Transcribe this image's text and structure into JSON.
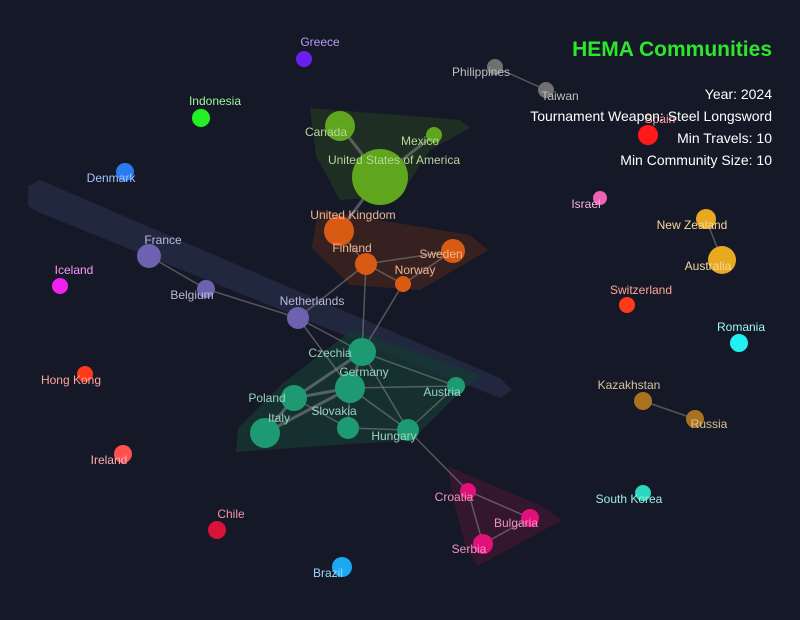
{
  "header": {
    "title": "HEMA Communities",
    "year": "Year:  2024",
    "weapon": "Tournament Weapon: Steel Longsword",
    "min_travels": "Min Travels:  10",
    "min_community": "Min Community Size:  10"
  },
  "colors": {
    "background": "#151827",
    "title": "#2ee62e",
    "edge": "#8a8a8a"
  },
  "nodes": [
    {
      "id": "greece",
      "label": "Greece",
      "color": "#6a1ff0"
    },
    {
      "id": "philippines",
      "label": "Philippines",
      "color": "#707070"
    },
    {
      "id": "taiwan",
      "label": "Taiwan",
      "color": "#707070"
    },
    {
      "id": "spain",
      "label": "Spain",
      "color": "#ff1a1a"
    },
    {
      "id": "indonesia",
      "label": "Indonesia",
      "color": "#22f022"
    },
    {
      "id": "canada",
      "label": "Canada",
      "color": "#5fa51e"
    },
    {
      "id": "mexico",
      "label": "Mexico",
      "color": "#5fa51e"
    },
    {
      "id": "usa",
      "label": "United States of America",
      "color": "#5fa51e"
    },
    {
      "id": "denmark",
      "label": "Denmark",
      "color": "#2a7af0"
    },
    {
      "id": "israel",
      "label": "Israel",
      "color": "#f060b0"
    },
    {
      "id": "new_zealand",
      "label": "New Zealand",
      "color": "#e8a820"
    },
    {
      "id": "australia",
      "label": "Australia",
      "color": "#e8a820"
    },
    {
      "id": "uk",
      "label": "United Kingdom",
      "color": "#d95a12"
    },
    {
      "id": "finland",
      "label": "Finland",
      "color": "#d95a12"
    },
    {
      "id": "sweden",
      "label": "Sweden",
      "color": "#d95a12"
    },
    {
      "id": "norway",
      "label": "Norway",
      "color": "#d95a12"
    },
    {
      "id": "france",
      "label": "France",
      "color": "#6e62b0"
    },
    {
      "id": "belgium",
      "label": "Belgium",
      "color": "#6e62b0"
    },
    {
      "id": "netherlands",
      "label": "Netherlands",
      "color": "#6e62b0"
    },
    {
      "id": "iceland",
      "label": "Iceland",
      "color": "#f020f0"
    },
    {
      "id": "switzerland",
      "label": "Switzerland",
      "color": "#ff3a1a"
    },
    {
      "id": "romania",
      "label": "Romania",
      "color": "#22f0f0"
    },
    {
      "id": "czechia",
      "label": "Czechia",
      "color": "#1e9a72"
    },
    {
      "id": "germany",
      "label": "Germany",
      "color": "#1e9a72"
    },
    {
      "id": "austria",
      "label": "Austria",
      "color": "#1e9a72"
    },
    {
      "id": "poland",
      "label": "Poland",
      "color": "#1e9a72"
    },
    {
      "id": "italy",
      "label": "Italy",
      "color": "#1e9a72"
    },
    {
      "id": "slovakia",
      "label": "Slovakia",
      "color": "#1e9a72"
    },
    {
      "id": "hungary",
      "label": "Hungary",
      "color": "#1e9a72"
    },
    {
      "id": "hong_kong",
      "label": "Hong Kong",
      "color": "#ff3a1a"
    },
    {
      "id": "ireland",
      "label": "Ireland",
      "color": "#ff5050"
    },
    {
      "id": "kazakhstan",
      "label": "Kazakhstan",
      "color": "#a8721e"
    },
    {
      "id": "russia",
      "label": "Russia",
      "color": "#a8721e"
    },
    {
      "id": "croatia",
      "label": "Croatia",
      "color": "#e0127a"
    },
    {
      "id": "bulgaria",
      "label": "Bulgaria",
      "color": "#e0127a"
    },
    {
      "id": "serbia",
      "label": "Serbia",
      "color": "#e0127a"
    },
    {
      "id": "south_korea",
      "label": "South Korea",
      "color": "#2ad8c0"
    },
    {
      "id": "chile",
      "label": "Chile",
      "color": "#d8123a"
    },
    {
      "id": "brazil",
      "label": "Brazil",
      "color": "#1aa8f0"
    }
  ],
  "edges": [
    [
      "philippines",
      "taiwan"
    ],
    [
      "canada",
      "usa"
    ],
    [
      "mexico",
      "usa"
    ],
    [
      "usa",
      "uk"
    ],
    [
      "uk",
      "finland"
    ],
    [
      "finland",
      "sweden"
    ],
    [
      "finland",
      "norway"
    ],
    [
      "sweden",
      "norway"
    ],
    [
      "finland",
      "netherlands"
    ],
    [
      "finland",
      "czechia"
    ],
    [
      "norway",
      "czechia"
    ],
    [
      "france",
      "belgium"
    ],
    [
      "belgium",
      "netherlands"
    ],
    [
      "netherlands",
      "czechia"
    ],
    [
      "netherlands",
      "germany"
    ],
    [
      "czechia",
      "germany"
    ],
    [
      "czechia",
      "poland"
    ],
    [
      "czechia",
      "austria"
    ],
    [
      "germany",
      "poland"
    ],
    [
      "germany",
      "italy"
    ],
    [
      "germany",
      "slovakia"
    ],
    [
      "germany",
      "austria"
    ],
    [
      "germany",
      "hungary"
    ],
    [
      "poland",
      "slovakia"
    ],
    [
      "poland",
      "italy"
    ],
    [
      "slovakia",
      "hungary"
    ],
    [
      "austria",
      "hungary"
    ],
    [
      "czechia",
      "hungary"
    ],
    [
      "hungary",
      "croatia"
    ],
    [
      "croatia",
      "serbia"
    ],
    [
      "croatia",
      "bulgaria"
    ],
    [
      "serbia",
      "bulgaria"
    ],
    [
      "new_zealand",
      "australia"
    ],
    [
      "kazakhstan",
      "russia"
    ]
  ]
}
